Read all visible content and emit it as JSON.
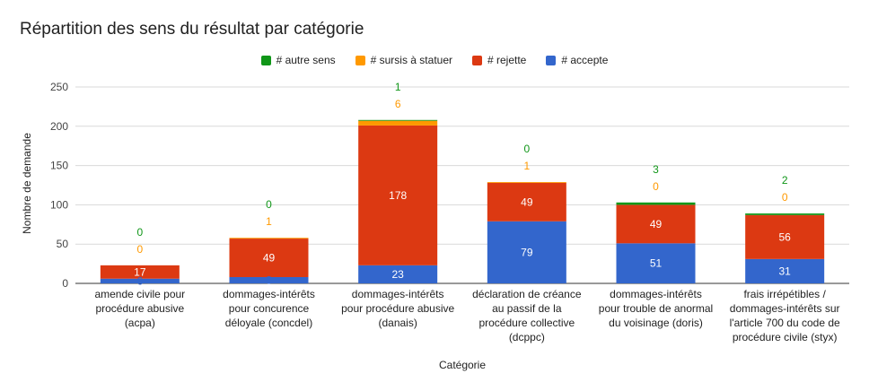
{
  "chart_data": {
    "type": "bar",
    "stacked": true,
    "title": "Répartition des sens du résultat par catégorie",
    "xlabel": "Catégorie",
    "ylabel": "Nombre de demande",
    "ylim": [
      0,
      250
    ],
    "yticks": [
      0,
      50,
      100,
      150,
      200,
      250
    ],
    "grid": true,
    "legend_position": "top",
    "categories": [
      [
        "amende civile pour",
        "procédure abusive",
        "(acpa)"
      ],
      [
        "dommages-intérêts",
        "pour concurence",
        "déloyale (concdel)"
      ],
      [
        "dommages-intérêts",
        "pour procédure abusive",
        "(danais)"
      ],
      [
        "déclaration de créance",
        "au passif de la",
        "procédure collective",
        "(dcppc)"
      ],
      [
        "dommages-intérêts",
        "pour trouble de anormal",
        "du voisinage (doris)"
      ],
      [
        "frais irrépétibles /",
        "dommages-intérêts sur",
        "l'article 700 du code de",
        "procédure civile (styx)"
      ]
    ],
    "legend_order": [
      "# autre sens",
      "# sursis à statuer",
      "# rejette",
      "# accepte"
    ],
    "series": [
      {
        "name": "# accepte",
        "color": "#3366cc",
        "label_color": "#ffffff",
        "values": [
          6,
          8,
          23,
          79,
          51,
          31
        ]
      },
      {
        "name": "# rejette",
        "color": "#dc3912",
        "label_color": "#ffffff",
        "values": [
          17,
          49,
          178,
          49,
          49,
          56
        ]
      },
      {
        "name": "# sursis à statuer",
        "color": "#ff9900",
        "label_color": "#ff9900",
        "values": [
          0,
          1,
          6,
          1,
          0,
          0
        ]
      },
      {
        "name": "# autre sens",
        "color": "#109618",
        "label_color": "#109618",
        "values": [
          0,
          0,
          1,
          0,
          3,
          2
        ]
      }
    ]
  }
}
